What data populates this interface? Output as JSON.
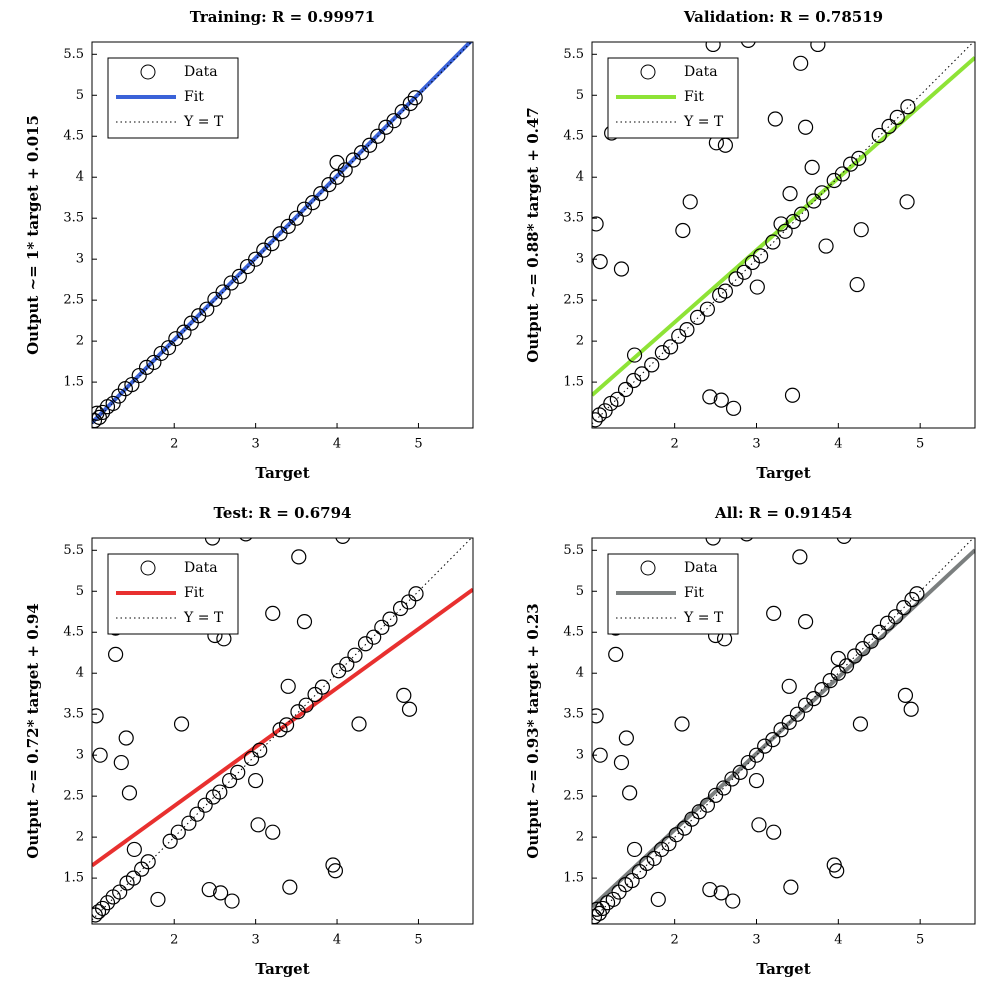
{
  "chart_data": [
    {
      "type": "scatter",
      "title": "Training: R = 0.99971",
      "xlabel": "Target",
      "ylabel": "Output ~= 1* target + 0.015",
      "xlim": [
        0.99,
        5.67
      ],
      "ylim": [
        0.94,
        5.65
      ],
      "xticks": [
        2,
        3,
        4,
        5
      ],
      "yticks": [
        1.5,
        2,
        2.5,
        3,
        3.5,
        4,
        4.5,
        5,
        5.5
      ],
      "legend": "upper left",
      "series": [
        {
          "name": "Data",
          "type": "scatter",
          "color": "#000000",
          "x": [
            1.02,
            1.05,
            1.08,
            1.12,
            1.18,
            1.25,
            1.32,
            1.4,
            1.48,
            1.57,
            1.66,
            1.75,
            1.84,
            1.93,
            2.02,
            2.12,
            2.21,
            2.3,
            2.4,
            2.5,
            2.6,
            2.7,
            2.8,
            2.9,
            3.0,
            3.1,
            3.2,
            3.3,
            3.4,
            3.5,
            3.6,
            3.7,
            3.8,
            3.9,
            4.0,
            4.1,
            4.2,
            4.3,
            4.4,
            4.5,
            4.6,
            4.7,
            4.8,
            4.9,
            4.96,
            4.0
          ],
          "values": [
            1.03,
            1.12,
            1.07,
            1.13,
            1.2,
            1.24,
            1.33,
            1.42,
            1.47,
            1.58,
            1.68,
            1.74,
            1.85,
            1.92,
            2.03,
            2.11,
            2.22,
            2.31,
            2.39,
            2.51,
            2.6,
            2.71,
            2.79,
            2.91,
            3.0,
            3.11,
            3.19,
            3.31,
            3.4,
            3.5,
            3.61,
            3.69,
            3.8,
            3.91,
            4.0,
            4.09,
            4.21,
            4.3,
            4.39,
            4.5,
            4.61,
            4.69,
            4.8,
            4.9,
            4.97,
            4.18
          ]
        },
        {
          "name": "Fit",
          "type": "line",
          "line_style": "solid",
          "color": "#3a62d8",
          "x": [
            0.99,
            5.67
          ],
          "values": [
            1.005,
            5.685
          ]
        },
        {
          "name": "Y = T",
          "type": "line",
          "line_style": "dotted",
          "color": "#000000",
          "x": [
            0.99,
            5.67
          ],
          "values": [
            0.99,
            5.67
          ]
        }
      ]
    },
    {
      "type": "scatter",
      "title": "Validation: R = 0.78519",
      "xlabel": "Target",
      "ylabel": "Output ~= 0.88* target + 0.47",
      "xlim": [
        0.99,
        5.67
      ],
      "ylim": [
        0.94,
        5.65
      ],
      "xticks": [
        2,
        3,
        4,
        5
      ],
      "yticks": [
        1.5,
        2,
        2.5,
        3,
        3.5,
        4,
        4.5,
        5,
        5.5
      ],
      "legend": "upper left",
      "series": [
        {
          "name": "Data",
          "type": "scatter",
          "color": "#000000",
          "x": [
            1.03,
            1.08,
            1.15,
            1.22,
            1.3,
            1.4,
            1.5,
            1.6,
            1.72,
            1.85,
            1.95,
            2.05,
            2.15,
            2.28,
            2.4,
            2.55,
            2.62,
            2.75,
            2.85,
            2.95,
            3.05,
            3.2,
            3.35,
            3.45,
            3.55,
            3.7,
            3.8,
            3.95,
            4.05,
            4.15,
            4.25,
            4.5,
            4.62,
            4.72,
            4.85,
            2.47,
            2.9,
            3.75,
            3.54,
            3.6,
            3.23,
            2.51,
            2.62,
            3.68,
            3.41,
            2.19,
            4.84,
            4.28,
            1.04,
            2.1,
            3.3,
            1.09,
            1.35,
            3.85,
            3.01,
            4.23,
            2.43,
            2.57,
            2.72,
            3.44,
            1.23,
            1.51
          ],
          "values": [
            1.04,
            1.1,
            1.15,
            1.24,
            1.29,
            1.41,
            1.52,
            1.6,
            1.71,
            1.86,
            1.93,
            2.06,
            2.14,
            2.29,
            2.39,
            2.56,
            2.61,
            2.76,
            2.84,
            2.96,
            3.04,
            3.21,
            3.34,
            3.46,
            3.55,
            3.71,
            3.81,
            3.96,
            4.04,
            4.16,
            4.23,
            4.51,
            4.62,
            4.73,
            4.86,
            5.62,
            5.67,
            5.62,
            5.39,
            4.61,
            4.71,
            4.42,
            4.39,
            4.12,
            3.8,
            3.7,
            3.7,
            3.36,
            3.43,
            3.35,
            3.43,
            2.97,
            2.88,
            3.16,
            2.66,
            2.69,
            1.32,
            1.28,
            1.18,
            1.34,
            4.54,
            1.83
          ]
        },
        {
          "name": "Fit",
          "type": "line",
          "line_style": "solid",
          "color": "#8ee336",
          "x": [
            0.99,
            5.67
          ],
          "values": [
            1.341,
            5.46
          ]
        },
        {
          "name": "Y = T",
          "type": "line",
          "line_style": "dotted",
          "color": "#000000",
          "x": [
            0.99,
            5.67
          ],
          "values": [
            0.99,
            5.67
          ]
        }
      ]
    },
    {
      "type": "scatter",
      "title": "Test: R = 0.6794",
      "xlabel": "Target",
      "ylabel": "Output ~= 0.72* target + 0.94",
      "xlim": [
        0.99,
        5.67
      ],
      "ylim": [
        0.94,
        5.65
      ],
      "xticks": [
        2,
        3,
        4,
        5
      ],
      "yticks": [
        1.5,
        2,
        2.5,
        3,
        3.5,
        4,
        4.5,
        5,
        5.5
      ],
      "legend": "upper left",
      "series": [
        {
          "name": "Data",
          "type": "scatter",
          "color": "#000000",
          "x": [
            1.03,
            1.07,
            1.12,
            1.18,
            1.25,
            1.33,
            1.42,
            1.5,
            1.6,
            1.68,
            1.95,
            2.05,
            2.18,
            2.28,
            2.38,
            2.48,
            2.56,
            2.68,
            2.78,
            2.95,
            3.05,
            3.3,
            3.38,
            3.52,
            3.62,
            3.73,
            3.82,
            4.02,
            4.12,
            4.22,
            4.35,
            4.45,
            4.55,
            4.65,
            4.78,
            4.88,
            4.97,
            2.47,
            2.88,
            4.07,
            3.53,
            3.6,
            3.21,
            2.5,
            2.61,
            1.28,
            3.4,
            2.09,
            4.27,
            4.82,
            4.89,
            1.04,
            1.41,
            1.09,
            1.35,
            1.45,
            3.0,
            3.03,
            3.21,
            1.51,
            1.8,
            2.43,
            2.57,
            2.71,
            3.42,
            3.95,
            3.98,
            1.28
          ],
          "values": [
            1.05,
            1.09,
            1.13,
            1.2,
            1.27,
            1.33,
            1.44,
            1.5,
            1.61,
            1.7,
            1.95,
            2.06,
            2.17,
            2.28,
            2.39,
            2.49,
            2.55,
            2.69,
            2.79,
            2.96,
            3.06,
            3.31,
            3.37,
            3.53,
            3.61,
            3.74,
            3.83,
            4.03,
            4.11,
            4.22,
            4.36,
            4.44,
            4.56,
            4.66,
            4.79,
            4.87,
            4.97,
            5.65,
            5.7,
            5.67,
            5.42,
            4.63,
            4.73,
            4.46,
            4.42,
            4.23,
            3.84,
            3.38,
            3.38,
            3.73,
            3.56,
            3.48,
            3.21,
            3.0,
            2.91,
            2.54,
            2.69,
            2.15,
            2.06,
            1.85,
            1.24,
            1.36,
            1.32,
            1.22,
            1.39,
            1.66,
            1.59,
            4.55
          ]
        },
        {
          "name": "Fit",
          "type": "line",
          "line_style": "solid",
          "color": "#e8302f",
          "x": [
            0.99,
            5.67
          ],
          "values": [
            1.653,
            5.022
          ]
        },
        {
          "name": "Y = T",
          "type": "line",
          "line_style": "dotted",
          "color": "#000000",
          "x": [
            0.99,
            5.67
          ],
          "values": [
            0.99,
            5.67
          ]
        }
      ]
    },
    {
      "type": "scatter",
      "title": "All: R = 0.91454",
      "xlabel": "Target",
      "ylabel": "Output ~= 0.93* target + 0.23",
      "xlim": [
        0.99,
        5.67
      ],
      "ylim": [
        0.94,
        5.65
      ],
      "xticks": [
        2,
        3,
        4,
        5
      ],
      "yticks": [
        1.5,
        2,
        2.5,
        3,
        3.5,
        4,
        4.5,
        5,
        5.5
      ],
      "legend": "upper left",
      "series": [
        {
          "name": "Data",
          "type": "scatter",
          "color": "#000000",
          "x": [
            1.02,
            1.05,
            1.08,
            1.12,
            1.18,
            1.25,
            1.32,
            1.4,
            1.48,
            1.57,
            1.66,
            1.75,
            1.84,
            1.93,
            2.02,
            2.12,
            2.21,
            2.3,
            2.4,
            2.5,
            2.6,
            2.7,
            2.8,
            2.9,
            3.0,
            3.1,
            3.2,
            3.3,
            3.4,
            3.5,
            3.6,
            3.7,
            3.8,
            3.9,
            4.0,
            4.1,
            4.2,
            4.3,
            4.4,
            4.5,
            4.6,
            4.7,
            4.8,
            4.9,
            4.96,
            4.0,
            2.47,
            2.88,
            4.07,
            3.53,
            3.6,
            3.21,
            2.5,
            2.61,
            1.28,
            3.4,
            2.09,
            4.27,
            4.82,
            4.89,
            1.04,
            1.41,
            1.09,
            1.35,
            1.45,
            3.0,
            3.03,
            3.21,
            1.51,
            1.8,
            2.43,
            2.57,
            2.71,
            3.42,
            3.95,
            3.98,
            1.28
          ],
          "values": [
            1.03,
            1.12,
            1.07,
            1.13,
            1.2,
            1.24,
            1.33,
            1.42,
            1.47,
            1.58,
            1.68,
            1.74,
            1.85,
            1.92,
            2.03,
            2.11,
            2.22,
            2.31,
            2.39,
            2.51,
            2.6,
            2.71,
            2.79,
            2.91,
            3.0,
            3.11,
            3.19,
            3.31,
            3.4,
            3.5,
            3.61,
            3.69,
            3.8,
            3.91,
            4.0,
            4.09,
            4.21,
            4.3,
            4.39,
            4.5,
            4.61,
            4.69,
            4.8,
            4.9,
            4.97,
            4.18,
            5.65,
            5.7,
            5.67,
            5.42,
            4.63,
            4.73,
            4.46,
            4.42,
            4.23,
            3.84,
            3.38,
            3.38,
            3.73,
            3.56,
            3.48,
            3.21,
            3.0,
            2.91,
            2.54,
            2.69,
            2.15,
            2.06,
            1.85,
            1.24,
            1.36,
            1.32,
            1.22,
            1.39,
            1.66,
            1.59,
            4.55
          ]
        },
        {
          "name": "Fit",
          "type": "line",
          "line_style": "solid",
          "color": "#7b7f7f",
          "x": [
            0.99,
            5.67
          ],
          "values": [
            1.151,
            5.503
          ]
        },
        {
          "name": "Y = T",
          "type": "line",
          "line_style": "dotted",
          "color": "#000000",
          "x": [
            0.99,
            5.67
          ],
          "values": [
            0.99,
            5.67
          ]
        }
      ]
    }
  ]
}
